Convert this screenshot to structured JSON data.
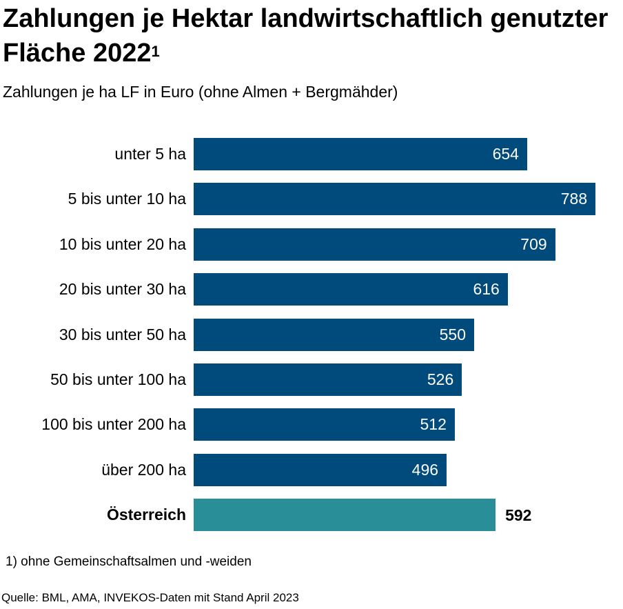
{
  "chart_data": {
    "type": "bar",
    "orientation": "horizontal",
    "title": "Zahlungen je Hektar landwirtschaftlich genutzter Fläche 2022",
    "title_footnote_mark": "1",
    "subtitle": "Zahlungen je ha LF in Euro (ohne Almen + Bergmähder)",
    "categories": [
      "unter 5 ha",
      "5 bis unter 10 ha",
      "10 bis unter 20 ha",
      "20 bis unter 30 ha",
      "30 bis unter 50 ha",
      "50 bis unter 100 ha",
      "100 bis unter 200 ha",
      "über 200 ha",
      "Österreich"
    ],
    "values": [
      654,
      788,
      709,
      616,
      550,
      526,
      512,
      496,
      592
    ],
    "highlight_index": 8,
    "xlim": [
      0,
      800
    ],
    "grid": false,
    "colors": {
      "bar": "#004b7b",
      "highlight": "#2a8e98"
    },
    "footnote": "1) ohne Gemeinschaftsalmen und -weiden",
    "source": "Quelle: BML, AMA, INVEKOS-Daten mit Stand April 2023"
  }
}
